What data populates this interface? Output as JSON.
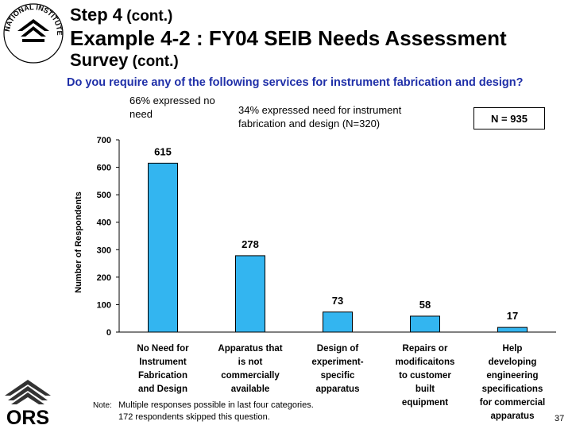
{
  "logo": {
    "nih_text": "NATIONAL INSTITUTES OF HEALTH",
    "ors_text": "ORS"
  },
  "title": {
    "line1_main": "Step 4",
    "line1_small": " (cont.)",
    "line2": "Example 4-2 :  FY04 SEIB Needs Assessment",
    "line3_main": "Survey",
    "line3_small": " (cont.)"
  },
  "question": "Do you require any of the following services for instrument fabrication and design?",
  "annotations": {
    "pct_no_need": "66% expressed no need",
    "pct_need": "34%  expressed need for instrument fabrication and design (N=320)",
    "n_total": "N = 935"
  },
  "footnote": {
    "label": "Note:",
    "line1": "Multiple responses possible in last four categories.",
    "line2": "172 respondents skipped this question."
  },
  "page_number": "37",
  "colors": {
    "bar_fill": "#33b5f0",
    "bar_stroke": "#000000",
    "question_text": "#1f2fa8"
  },
  "chart_data": {
    "type": "bar",
    "ylabel": "Number of Respondents",
    "xlabel": "",
    "ylim": [
      0,
      700
    ],
    "yticks": [
      0,
      100,
      200,
      300,
      400,
      500,
      600,
      700
    ],
    "grid": false,
    "categories": [
      [
        "No Need for",
        "Instrument",
        "Fabrication",
        "and Design"
      ],
      [
        "Apparatus that",
        "is not",
        "commercially",
        "available"
      ],
      [
        "Design of",
        "experiment-",
        "specific",
        "apparatus"
      ],
      [
        "Repairs or",
        "modificaitons",
        "to customer",
        "built",
        "equipment"
      ],
      [
        "Help",
        "developing",
        "engineering",
        "specifications",
        "for commercial",
        "apparatus"
      ]
    ],
    "values": [
      615,
      278,
      73,
      58,
      17
    ],
    "data_labels": [
      "615",
      "278",
      "73",
      "58",
      "17"
    ]
  }
}
